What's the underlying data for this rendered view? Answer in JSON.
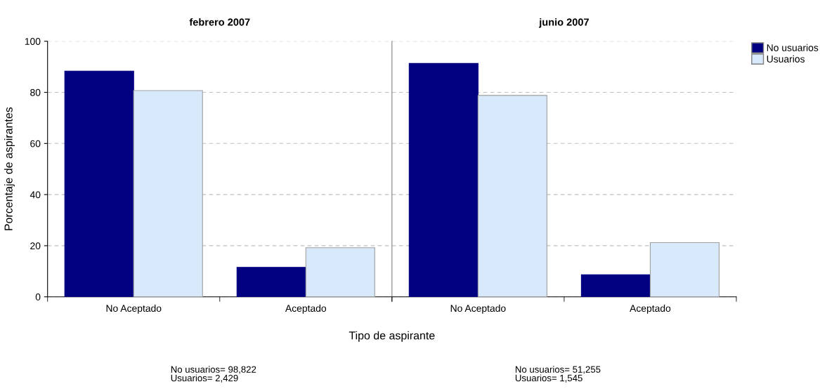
{
  "chart_data": [
    {
      "type": "bar",
      "title": "febrero 2007",
      "xlabel": "Tipo de aspirante",
      "ylabel": "Porcentaje de aspirantes",
      "categories": [
        "No Aceptado",
        "Aceptado"
      ],
      "series": [
        {
          "name": "No usuarios",
          "color": "#000080",
          "values": [
            88.3,
            11.5
          ]
        },
        {
          "name": "Usuarios",
          "color": "#d9e9fc",
          "values": [
            80.7,
            19.2
          ]
        }
      ],
      "ylim": [
        0,
        100
      ],
      "yticks": [
        0,
        20,
        40,
        60,
        80,
        100
      ],
      "grid": "y",
      "legend": "top right",
      "annotations": [
        "No usuarios= 98,822\nUsuarios= 2,429"
      ]
    },
    {
      "type": "bar",
      "title": "junio 2007",
      "categories": [
        "No Aceptado",
        "Aceptado"
      ],
      "series": [
        {
          "color": "#000080",
          "values": [
            91.3,
            8.6
          ]
        },
        {
          "color": "#d9e9fc",
          "values": [
            78.8,
            21.2
          ]
        }
      ],
      "ylim": [
        0,
        100
      ],
      "yticks": [
        0,
        20,
        40,
        60,
        80,
        100
      ],
      "grid": "y",
      "tick_labels": "x",
      "annotations": [
        "No usuarios= 51,255\nUsuarios= 1,545"
      ]
    }
  ]
}
